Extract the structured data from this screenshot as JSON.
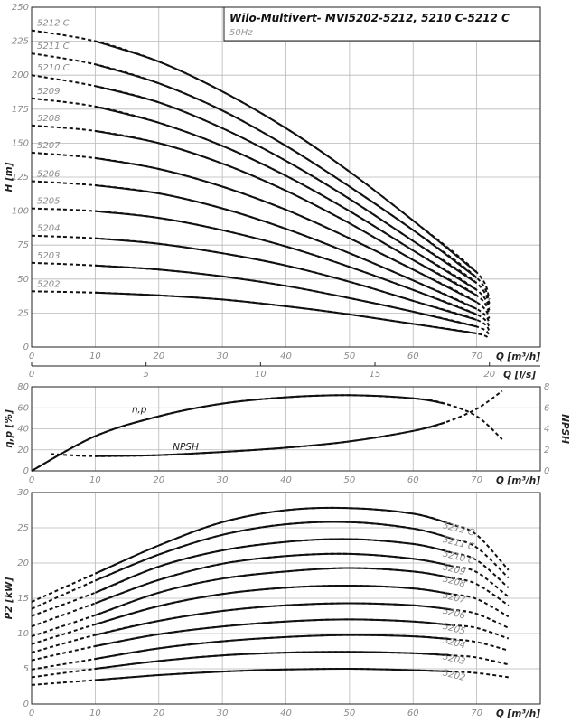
{
  "title": "Wilo-Multivert- MVI5202-5212, 5210 C-5212 C",
  "subtitle": "50Hz",
  "chart_data": [
    {
      "id": "head",
      "type": "line",
      "xlabel": "Q [m³/h]",
      "ylabel": "H [m]",
      "xlim": [
        0,
        80
      ],
      "ylim": [
        0,
        250
      ],
      "xticks": [
        "0",
        "10",
        "20",
        "30",
        "40",
        "50",
        "60",
        "70"
      ],
      "yticks": [
        "0",
        "25",
        "50",
        "75",
        "100",
        "125",
        "150",
        "175",
        "200",
        "225",
        "250"
      ],
      "secondary_x": {
        "label": "Q [l/s]",
        "ticks": [
          "0",
          "5",
          "10",
          "15",
          "20"
        ]
      },
      "grid": true,
      "series": [
        {
          "name": "5212 C",
          "x": [
            0,
            10,
            20,
            30,
            40,
            50,
            60,
            70,
            72
          ],
          "y": [
            233,
            225,
            210,
            188,
            161,
            129,
            93,
            55,
            35
          ]
        },
        {
          "name": "5211 C",
          "x": [
            0,
            10,
            20,
            30,
            40,
            50,
            60,
            70,
            72
          ],
          "y": [
            216,
            208,
            194,
            174,
            148,
            118,
            86,
            51,
            32
          ]
        },
        {
          "name": "5210 C",
          "x": [
            0,
            10,
            20,
            30,
            40,
            50,
            60,
            70,
            72
          ],
          "y": [
            200,
            192,
            180,
            161,
            137,
            109,
            78,
            47,
            29
          ]
        },
        {
          "name": "5209",
          "x": [
            0,
            10,
            20,
            30,
            40,
            50,
            60,
            70,
            72
          ],
          "y": [
            183,
            177,
            165,
            148,
            126,
            100,
            71,
            42,
            27
          ]
        },
        {
          "name": "5208",
          "x": [
            0,
            10,
            20,
            30,
            40,
            50,
            60,
            70,
            72
          ],
          "y": [
            163,
            159,
            150,
            135,
            115,
            91,
            64,
            38,
            24
          ]
        },
        {
          "name": "5207",
          "x": [
            0,
            10,
            20,
            30,
            40,
            50,
            60,
            70,
            72
          ],
          "y": [
            143,
            139,
            131,
            118,
            101,
            80,
            57,
            33,
            21
          ]
        },
        {
          "name": "5206",
          "x": [
            0,
            10,
            20,
            30,
            40,
            50,
            60,
            70,
            72
          ],
          "y": [
            122,
            119,
            113,
            102,
            87,
            69,
            49,
            28,
            18
          ]
        },
        {
          "name": "5205",
          "x": [
            0,
            10,
            20,
            30,
            40,
            50,
            60,
            70,
            72
          ],
          "y": [
            102,
            100,
            95,
            86,
            74,
            59,
            42,
            24,
            15
          ]
        },
        {
          "name": "5204",
          "x": [
            0,
            10,
            20,
            30,
            40,
            50,
            60,
            70,
            72
          ],
          "y": [
            82,
            80,
            76,
            69,
            60,
            48,
            34,
            20,
            12
          ]
        },
        {
          "name": "5203",
          "x": [
            0,
            10,
            20,
            30,
            40,
            50,
            60,
            70,
            72
          ],
          "y": [
            62,
            60,
            57,
            52,
            45,
            36,
            26,
            15,
            9
          ]
        },
        {
          "name": "5202",
          "x": [
            0,
            10,
            20,
            30,
            40,
            50,
            60,
            70,
            72
          ],
          "y": [
            41,
            40,
            38,
            35,
            30,
            24,
            17,
            10,
            6
          ]
        }
      ]
    },
    {
      "id": "efficiency",
      "type": "line",
      "xlabel": "Q [m³/h]",
      "ylabel": "η,p [%]",
      "ylabel_right": "NPSH",
      "xlim": [
        0,
        80
      ],
      "ylim": [
        0,
        80
      ],
      "ylim_right": [
        0,
        8
      ],
      "xticks": [
        "0",
        "10",
        "20",
        "30",
        "40",
        "50",
        "60",
        "70"
      ],
      "yticks": [
        "0",
        "20",
        "40",
        "60",
        "80"
      ],
      "yticks_right": [
        "0",
        "2",
        "4",
        "6",
        "8"
      ],
      "grid": true,
      "series": [
        {
          "name": "η,p",
          "axis": "left",
          "x": [
            0,
            10,
            20,
            30,
            40,
            50,
            60,
            65,
            70,
            74
          ],
          "y": [
            0,
            33,
            52,
            64,
            70,
            72,
            69,
            64,
            52,
            30
          ]
        },
        {
          "name": "NPSH",
          "axis": "right",
          "x": [
            3,
            10,
            20,
            30,
            40,
            50,
            60,
            65,
            70,
            74
          ],
          "y": [
            1.6,
            1.4,
            1.5,
            1.8,
            2.2,
            2.8,
            3.8,
            4.6,
            5.9,
            7.6
          ]
        }
      ]
    },
    {
      "id": "power",
      "type": "line",
      "xlabel": "Q [m³/h]",
      "ylabel": "P2 [kW]",
      "xlim": [
        0,
        80
      ],
      "ylim": [
        0,
        30
      ],
      "xticks": [
        "0",
        "10",
        "20",
        "30",
        "40",
        "50",
        "60",
        "70"
      ],
      "yticks": [
        "0",
        "5",
        "10",
        "15",
        "20",
        "25",
        "30"
      ],
      "grid": true,
      "series": [
        {
          "name": "5212 C",
          "x": [
            0,
            10,
            20,
            30,
            40,
            50,
            60,
            66,
            70,
            75
          ],
          "y": [
            14.5,
            18.5,
            22.5,
            25.8,
            27.5,
            27.8,
            27.0,
            25.5,
            24.0,
            19.0
          ]
        },
        {
          "name": "5211 C",
          "x": [
            0,
            10,
            20,
            30,
            40,
            50,
            60,
            66,
            70,
            75
          ],
          "y": [
            13.5,
            17.5,
            21.2,
            24.0,
            25.5,
            25.8,
            24.9,
            23.5,
            22.2,
            17.9
          ]
        },
        {
          "name": "5210 C",
          "x": [
            0,
            10,
            20,
            30,
            40,
            50,
            60,
            66,
            70,
            75
          ],
          "y": [
            12.5,
            15.8,
            19.5,
            21.8,
            23.0,
            23.4,
            22.7,
            21.5,
            20.4,
            16.5
          ]
        },
        {
          "name": "5209",
          "x": [
            0,
            10,
            20,
            30,
            40,
            50,
            60,
            66,
            70,
            75
          ],
          "y": [
            11.0,
            14.3,
            17.6,
            19.9,
            21.0,
            21.3,
            20.6,
            19.6,
            18.7,
            15.2
          ]
        },
        {
          "name": "5208",
          "x": [
            0,
            10,
            20,
            30,
            40,
            50,
            60,
            66,
            70,
            75
          ],
          "y": [
            9.6,
            12.6,
            15.8,
            17.8,
            18.8,
            19.3,
            18.8,
            17.9,
            17.0,
            14.0
          ]
        },
        {
          "name": "5207",
          "x": [
            0,
            10,
            20,
            30,
            40,
            50,
            60,
            66,
            70,
            75
          ],
          "y": [
            8.5,
            11.3,
            13.9,
            15.6,
            16.5,
            16.8,
            16.4,
            15.6,
            14.9,
            12.4
          ]
        },
        {
          "name": "5206",
          "x": [
            0,
            10,
            20,
            30,
            40,
            50,
            60,
            66,
            70,
            75
          ],
          "y": [
            7.3,
            9.8,
            11.8,
            13.2,
            14.0,
            14.3,
            14.0,
            13.4,
            12.8,
            10.8
          ]
        },
        {
          "name": "5205",
          "x": [
            0,
            10,
            20,
            30,
            40,
            50,
            60,
            66,
            70,
            75
          ],
          "y": [
            6.2,
            8.2,
            9.9,
            11.0,
            11.7,
            12.0,
            11.7,
            11.2,
            10.8,
            9.3
          ]
        },
        {
          "name": "5204",
          "x": [
            0,
            10,
            20,
            30,
            40,
            50,
            60,
            66,
            70,
            75
          ],
          "y": [
            4.9,
            6.4,
            7.9,
            8.9,
            9.5,
            9.8,
            9.6,
            9.2,
            8.8,
            7.6
          ]
        },
        {
          "name": "5203",
          "x": [
            0,
            10,
            20,
            30,
            40,
            50,
            60,
            66,
            70,
            75
          ],
          "y": [
            3.8,
            5.0,
            6.1,
            6.9,
            7.3,
            7.4,
            7.2,
            6.9,
            6.6,
            5.6
          ]
        },
        {
          "name": "5202",
          "x": [
            0,
            10,
            20,
            30,
            40,
            50,
            60,
            66,
            70,
            75
          ],
          "y": [
            2.7,
            3.4,
            4.1,
            4.6,
            4.9,
            5.0,
            4.8,
            4.6,
            4.4,
            3.8
          ]
        }
      ]
    }
  ]
}
